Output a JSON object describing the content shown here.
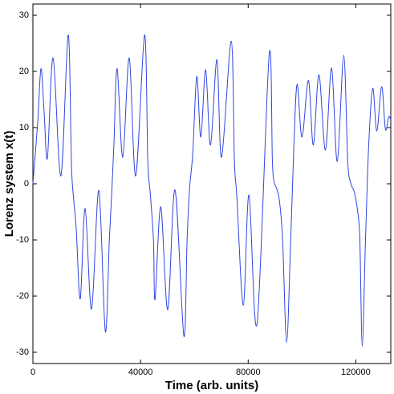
{
  "chart_data": {
    "type": "line",
    "xlabel": "Time (arb. units)",
    "ylabel": "Lorenz system x(t)",
    "x": [
      0,
      1800,
      3000,
      4200,
      5400,
      7500,
      10400,
      13100,
      14300,
      14900,
      16100,
      17600,
      19400,
      21800,
      24500,
      26900,
      28400,
      29300,
      30100,
      31300,
      33400,
      35800,
      38200,
      41500,
      42700,
      43600,
      44800,
      45400,
      47500,
      50100,
      52800,
      56100,
      57300,
      58200,
      59400,
      60900,
      62400,
      64200,
      66000,
      68400,
      70100,
      73700,
      74900,
      75800,
      78200,
      80300,
      83300,
      87800,
      89000,
      89600,
      90400,
      91600,
      92800,
      94300,
      95800,
      97000,
      98200,
      100000,
      102400,
      104200,
      106300,
      108700,
      111000,
      113100,
      115500,
      117000,
      118200,
      119400,
      120600,
      121500,
      122400,
      123600,
      124800,
      126300,
      127800,
      129600,
      131000,
      132200,
      133000
    ],
    "series": [
      {
        "color": "#2f45e0",
        "values": [
          0,
          11,
          20.5,
          12.5,
          4.6,
          22.4,
          1.4,
          26.5,
          4,
          -1.4,
          -8,
          -20.5,
          -4.4,
          -22.3,
          -1.2,
          -26.3,
          -10,
          -1.6,
          7,
          20.5,
          4.7,
          22.4,
          1.4,
          26.5,
          4,
          -1.6,
          -10,
          -20.6,
          -4.1,
          -22.4,
          -1.1,
          -27.1,
          -10,
          -1,
          5.4,
          19.1,
          8.3,
          20.3,
          6.9,
          22.1,
          4.7,
          25.4,
          4,
          -2.4,
          -21.6,
          -2,
          -24.9,
          23,
          4,
          0.4,
          -0.6,
          -3,
          -10,
          -28.3,
          -10,
          7,
          17.7,
          8.3,
          18.4,
          6.9,
          19.4,
          6,
          20.6,
          4,
          22.9,
          4,
          0,
          -1.4,
          -4.6,
          -10,
          -28.9,
          -10,
          7,
          17,
          9.4,
          17.3,
          9.7,
          11.9,
          11.4
        ]
      }
    ],
    "xlim": [
      0,
      133000
    ],
    "ylim": [
      -32,
      32
    ],
    "xticks": [
      0,
      40000,
      80000,
      120000
    ],
    "yticks": [
      -30,
      -20,
      -10,
      0,
      10,
      20,
      30
    ]
  }
}
